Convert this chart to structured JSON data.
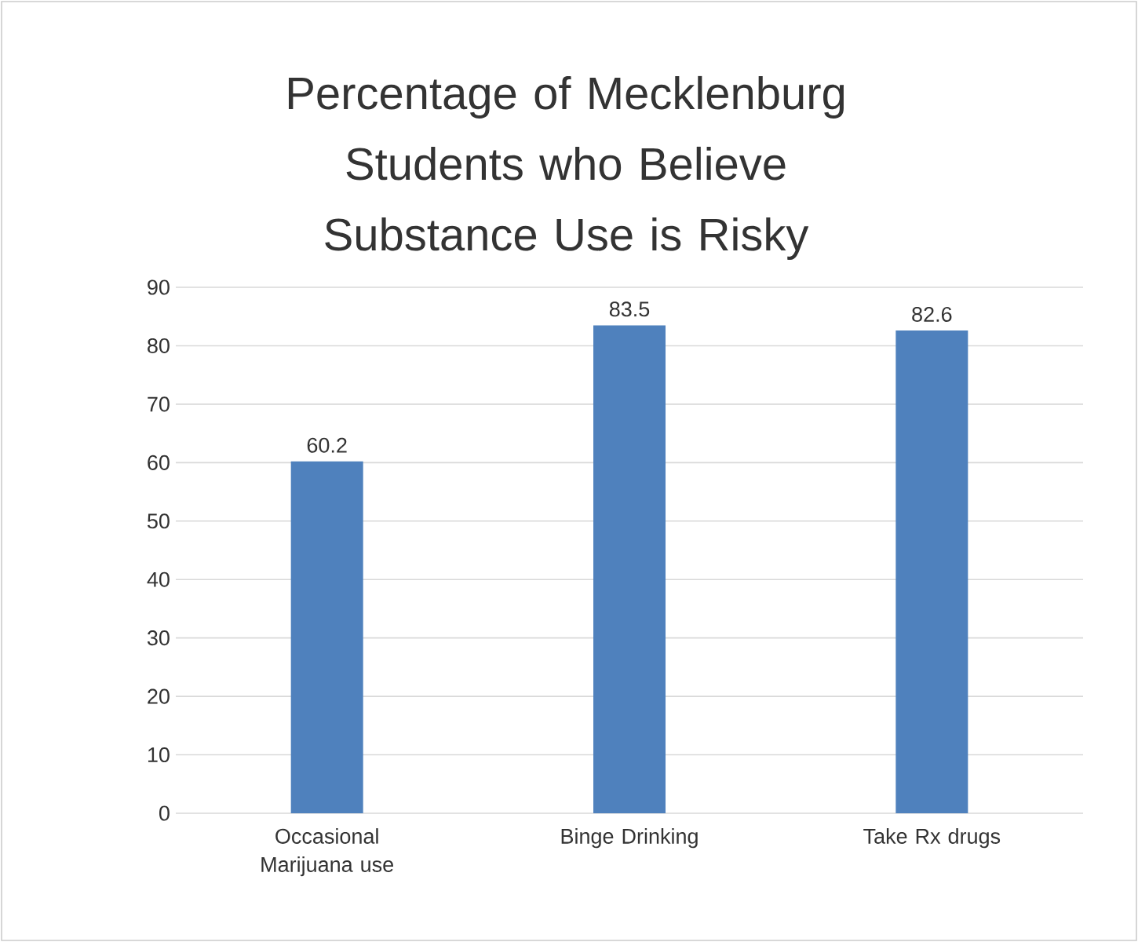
{
  "chart_data": {
    "type": "bar",
    "title": "Percentage of Mecklenburg Students who Believe Substance Use is Risky",
    "categories": [
      "Occasional Marijuana use",
      "Binge Drinking",
      "Take Rx drugs"
    ],
    "values": [
      60.2,
      83.5,
      82.6
    ],
    "color": "#4f81bd",
    "ylim": [
      0,
      90
    ],
    "yticks": [
      0,
      10,
      20,
      30,
      40,
      50,
      60,
      70,
      80,
      90
    ],
    "grid": "y",
    "data_labels": true
  }
}
